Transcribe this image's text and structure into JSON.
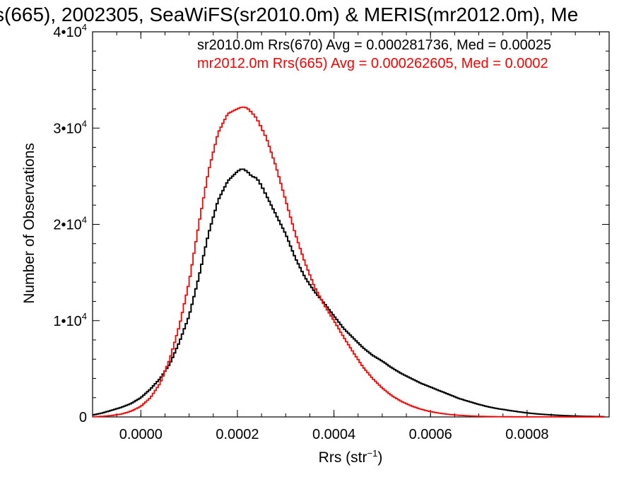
{
  "chart_data": {
    "type": "line",
    "title": "s(665), 2002305, SeaWiFS(sr2010.0m) & MERIS(mr2012.0m), Me",
    "xlabel": "Rrs (str",
    "xlabel_sup": "−1",
    "xlabel_end": ")",
    "ylabel": "Number of Observations",
    "xlim": [
      -0.0001,
      0.00097
    ],
    "ylim": [
      0,
      40000
    ],
    "x_ticks": [
      0.0,
      0.0002,
      0.0004,
      0.0006,
      0.0008
    ],
    "x_tick_labels": [
      "0.0000",
      "0.0002",
      "0.0004",
      "0.0006",
      "0.0008"
    ],
    "y_ticks": [
      0,
      10000,
      20000,
      30000,
      40000
    ],
    "y_tick_labels": [
      {
        "base": "0",
        "exp": ""
      },
      {
        "base": "1•10",
        "exp": "4"
      },
      {
        "base": "2•10",
        "exp": "4"
      },
      {
        "base": "3•10",
        "exp": "4"
      },
      {
        "base": "4•10",
        "exp": "4"
      }
    ],
    "grid": false,
    "legend_position": "top-right",
    "series": [
      {
        "name": "sr2010.0m Rrs(670) Avg = 0.000281736, Med = 0.00025",
        "color": "#000000",
        "x": [
          -0.0001,
          -8e-05,
          -6e-05,
          -4e-05,
          -2e-05,
          0.0,
          2e-05,
          4e-05,
          6e-05,
          8e-05,
          0.0001,
          0.00012,
          0.00014,
          0.00016,
          0.00018,
          0.0002,
          0.00021,
          0.00022,
          0.00023,
          0.00024,
          0.00025,
          0.00026,
          0.00028,
          0.0003,
          0.00032,
          0.00034,
          0.00036,
          0.00038,
          0.0004,
          0.00042,
          0.00044,
          0.00046,
          0.00048,
          0.0005,
          0.00052,
          0.00054,
          0.00056,
          0.00058,
          0.0006,
          0.00062,
          0.00064,
          0.00066,
          0.00068,
          0.0007,
          0.00072,
          0.00074,
          0.00076,
          0.00078,
          0.0008,
          0.00082,
          0.00084,
          0.00086,
          0.00088,
          0.0009,
          0.00092,
          0.00094,
          0.00096
        ],
        "y": [
          200,
          400,
          700,
          1000,
          1400,
          2000,
          2900,
          4000,
          5500,
          7800,
          10500,
          14500,
          19000,
          22500,
          24500,
          25500,
          25800,
          25500,
          25000,
          24800,
          24000,
          23000,
          21000,
          19000,
          16500,
          14500,
          13000,
          11800,
          10500,
          9200,
          8200,
          7200,
          6400,
          5800,
          5100,
          4500,
          4000,
          3500,
          3100,
          2700,
          2300,
          1900,
          1600,
          1300,
          1050,
          850,
          700,
          550,
          420,
          320,
          240,
          180,
          130,
          90,
          60,
          40,
          30
        ]
      },
      {
        "name": "mr2012.0m Rrs(665) Avg = 0.000262605, Med = 0.0002",
        "color": "#ff0000",
        "x": [
          -0.0001,
          -8e-05,
          -6e-05,
          -4e-05,
          -2e-05,
          0.0,
          2e-05,
          4e-05,
          6e-05,
          8e-05,
          0.0001,
          0.00012,
          0.00014,
          0.00016,
          0.00018,
          0.0002,
          0.00021,
          0.00022,
          0.00023,
          0.00024,
          0.00025,
          0.00026,
          0.00028,
          0.0003,
          0.00032,
          0.00034,
          0.00036,
          0.00038,
          0.0004,
          0.00042,
          0.00044,
          0.00046,
          0.00048,
          0.0005,
          0.00052,
          0.00054,
          0.00056,
          0.00058,
          0.0006,
          0.00062,
          0.00064,
          0.00066,
          0.00068,
          0.0007,
          0.00072,
          0.00074,
          0.00076,
          0.00078,
          0.0008,
          0.00082,
          0.00084,
          0.00086,
          0.00088,
          0.0009,
          0.00092,
          0.00094,
          0.00096
        ],
        "y": [
          20,
          60,
          150,
          300,
          600,
          1100,
          2000,
          3500,
          6000,
          9500,
          14000,
          20000,
          25500,
          29500,
          31500,
          32000,
          32200,
          32100,
          31600,
          31000,
          30000,
          29000,
          26000,
          22500,
          19000,
          16000,
          13500,
          11600,
          10000,
          8300,
          6700,
          5200,
          4000,
          3000,
          2200,
          1600,
          1150,
          800,
          550,
          380,
          250,
          170,
          110,
          70,
          45,
          30,
          20,
          15,
          10,
          8,
          5,
          4,
          3,
          2,
          1,
          1,
          1
        ]
      }
    ]
  }
}
